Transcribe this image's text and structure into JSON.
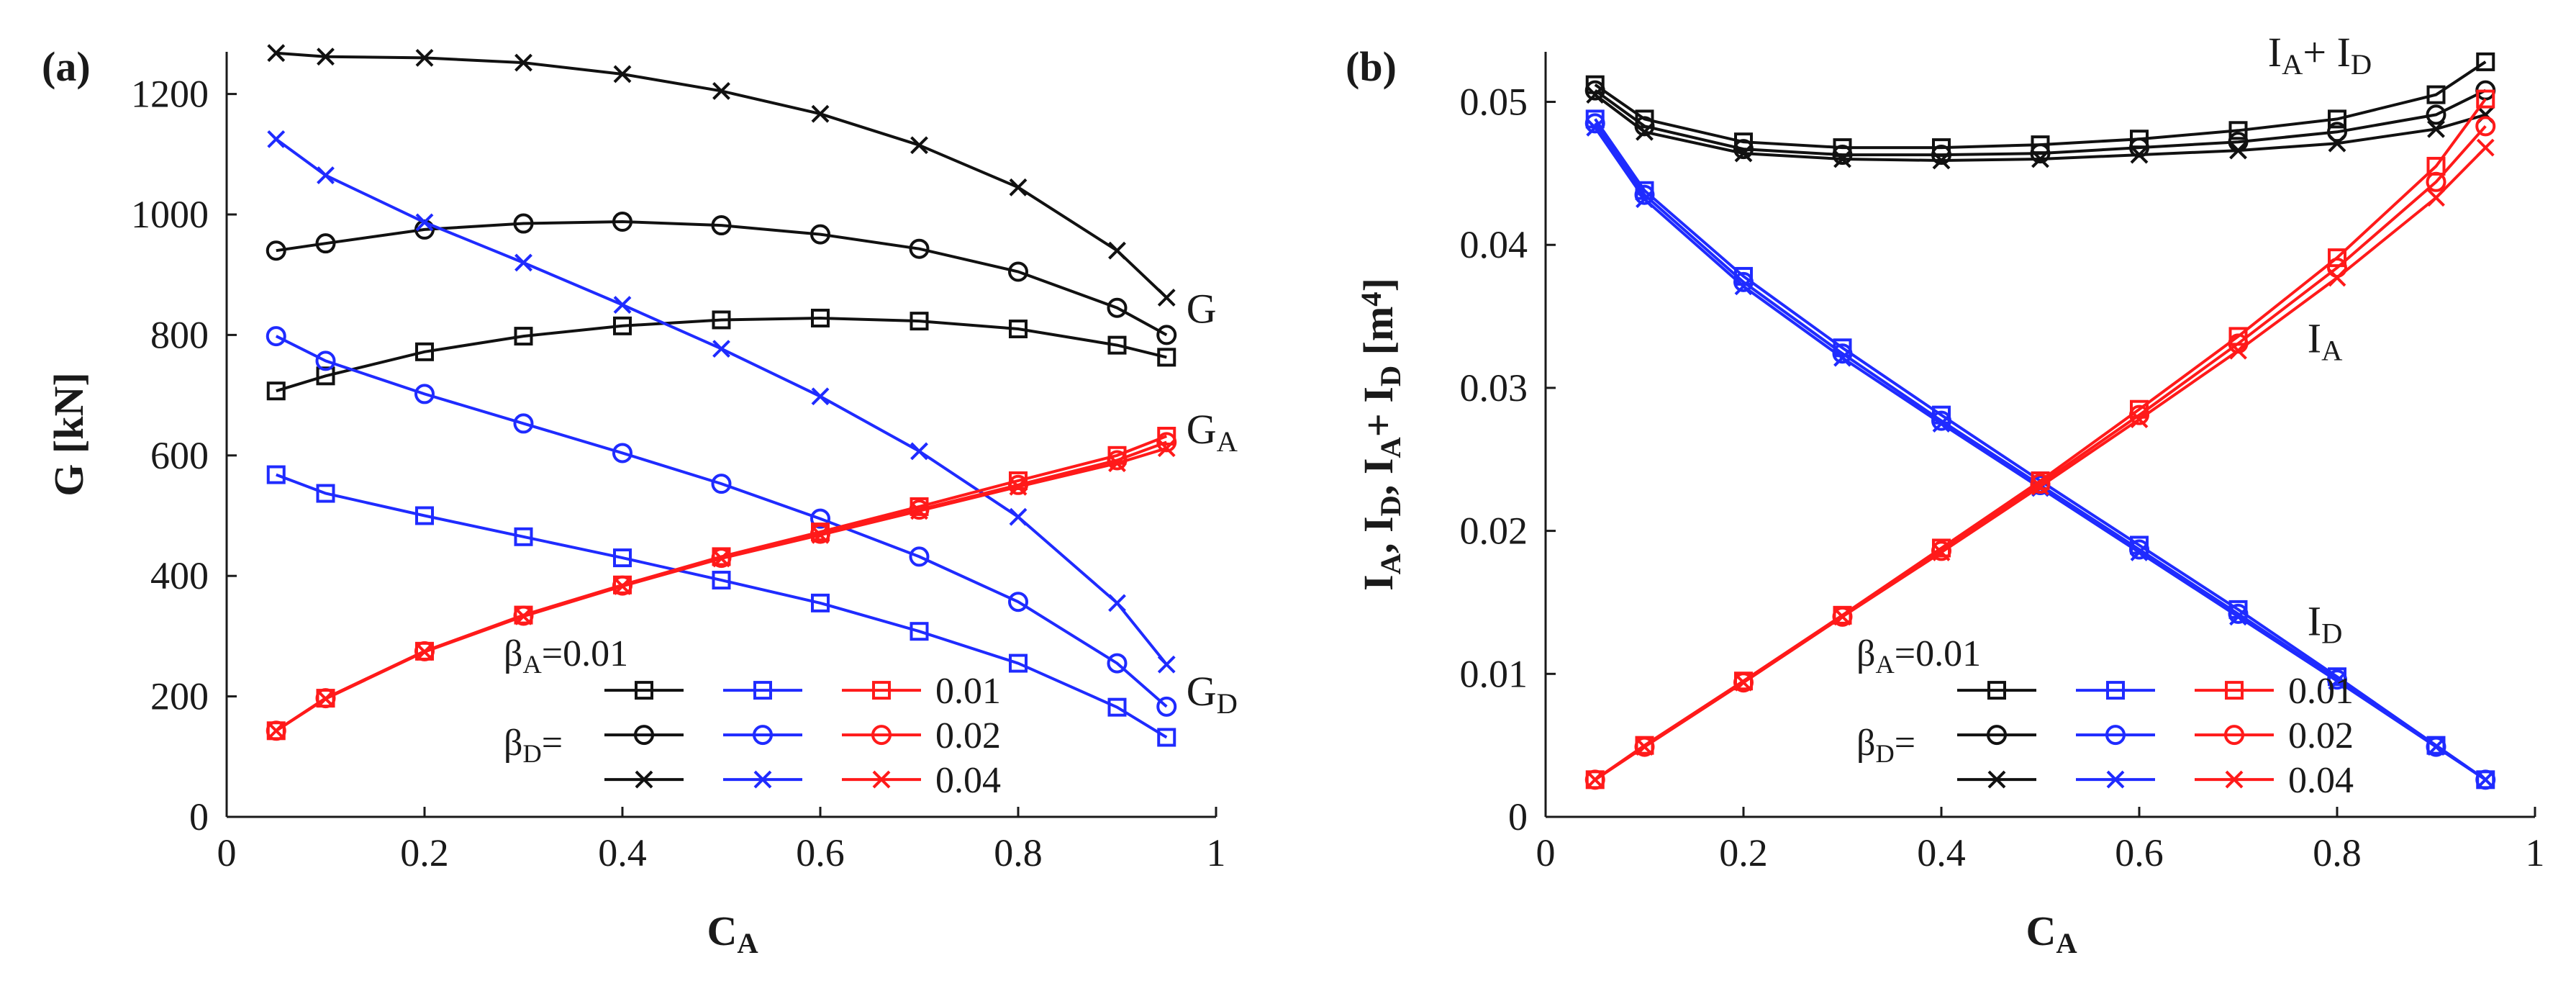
{
  "colors": {
    "black": "#111111",
    "blue": "#1f2bff",
    "red": "#ff1a1a",
    "axis": "#1a1a1a"
  },
  "chart_data": [
    {
      "type": "line",
      "panel": "(a)",
      "xlabel": "C",
      "xlabel_sub": "A",
      "ylabel": "G [kN]",
      "xlim": [
        0,
        1
      ],
      "ylim": [
        0,
        1270
      ],
      "xticks": [
        0,
        0.2,
        0.4,
        0.6,
        0.8,
        1
      ],
      "xtick_labels": [
        "0",
        "0.2",
        "0.4",
        "0.6",
        "0.8",
        "1"
      ],
      "yticks": [
        0,
        200,
        400,
        600,
        800,
        1000,
        1200
      ],
      "ytick_labels": [
        "0",
        "200",
        "400",
        "600",
        "800",
        "1000",
        "1200"
      ],
      "x": [
        0.05,
        0.1,
        0.2,
        0.3,
        0.4,
        0.5,
        0.6,
        0.7,
        0.8,
        0.9,
        0.95
      ],
      "series": [
        {
          "name": "G, βD=0.01",
          "color": "black",
          "marker": "square",
          "values": [
            707,
            732,
            772,
            798,
            815,
            825,
            828,
            823,
            810,
            783,
            763
          ]
        },
        {
          "name": "G, βD=0.02",
          "color": "black",
          "marker": "circle",
          "values": [
            940,
            952,
            975,
            985,
            988,
            982,
            967,
            943,
            905,
            845,
            800
          ]
        },
        {
          "name": "G, βD=0.04",
          "color": "black",
          "marker": "x",
          "values": [
            1268,
            1262,
            1260,
            1252,
            1233,
            1205,
            1167,
            1115,
            1045,
            940,
            862
          ]
        },
        {
          "name": "GD, βD=0.01",
          "color": "blue",
          "marker": "square",
          "values": [
            568,
            537,
            500,
            465,
            430,
            393,
            355,
            308,
            255,
            182,
            132
          ]
        },
        {
          "name": "GD, βD=0.02",
          "color": "blue",
          "marker": "circle",
          "values": [
            798,
            757,
            702,
            653,
            604,
            553,
            495,
            432,
            357,
            255,
            183
          ]
        },
        {
          "name": "GD, βD=0.04",
          "color": "blue",
          "marker": "x",
          "values": [
            1125,
            1065,
            987,
            920,
            850,
            777,
            698,
            607,
            498,
            355,
            253
          ]
        },
        {
          "name": "GA, βD=0.01",
          "color": "red",
          "marker": "square",
          "values": [
            143,
            197,
            275,
            335,
            385,
            432,
            473,
            515,
            558,
            600,
            632
          ]
        },
        {
          "name": "GA, βD=0.02",
          "color": "red",
          "marker": "circle",
          "values": [
            143,
            197,
            275,
            334,
            384,
            430,
            470,
            510,
            551,
            592,
            622
          ]
        },
        {
          "name": "GA, βD=0.04",
          "color": "red",
          "marker": "x",
          "values": [
            143,
            196,
            274,
            333,
            383,
            429,
            468,
            508,
            548,
            587,
            612
          ]
        }
      ],
      "annotations": [
        {
          "label": "G",
          "sub": "",
          "at_x": 0.97,
          "at_y": 820
        },
        {
          "label": "G",
          "sub": "A",
          "at_x": 0.97,
          "at_y": 620
        },
        {
          "label": "G",
          "sub": "D",
          "at_x": 0.97,
          "at_y": 185
        }
      ],
      "legend": {
        "beta_a_text": "β",
        "beta_a_sub": "A",
        "beta_a_value": "=0.01",
        "beta_d_text": "β",
        "beta_d_sub": "D",
        "beta_d_eq": "=",
        "entries": [
          "0.01",
          "0.02",
          "0.04"
        ],
        "placement": "lower-center"
      }
    },
    {
      "type": "line",
      "panel": "(b)",
      "xlabel": "C",
      "xlabel_sub": "A",
      "ylabel": "I",
      "ylabel_full": "IA, ID, IA+ ID [m4]",
      "xlim": [
        0,
        1
      ],
      "ylim": [
        0,
        0.0535
      ],
      "xticks": [
        0,
        0.2,
        0.4,
        0.6,
        0.8,
        1
      ],
      "xtick_labels": [
        "0",
        "0.2",
        "0.4",
        "0.6",
        "0.8",
        "1"
      ],
      "yticks": [
        0,
        0.01,
        0.02,
        0.03,
        0.04,
        0.05
      ],
      "ytick_labels": [
        "0",
        "0.01",
        "0.02",
        "0.03",
        "0.04",
        "0.05"
      ],
      "x": [
        0.05,
        0.1,
        0.2,
        0.3,
        0.4,
        0.5,
        0.6,
        0.7,
        0.8,
        0.9,
        0.95
      ],
      "series": [
        {
          "name": "IA+ID, βD=0.01",
          "color": "black",
          "marker": "square",
          "values": [
            0.0512,
            0.0488,
            0.0472,
            0.0468,
            0.0468,
            0.047,
            0.0474,
            0.048,
            0.0488,
            0.0505,
            0.0528
          ]
        },
        {
          "name": "IA+ID, βD=0.02",
          "color": "black",
          "marker": "circle",
          "values": [
            0.0508,
            0.0483,
            0.0467,
            0.0463,
            0.0463,
            0.0464,
            0.0468,
            0.0472,
            0.0479,
            0.0491,
            0.0508
          ]
        },
        {
          "name": "IA+ID, βD=0.04",
          "color": "black",
          "marker": "x",
          "values": [
            0.0505,
            0.0479,
            0.0464,
            0.046,
            0.0459,
            0.046,
            0.0463,
            0.0466,
            0.0471,
            0.0481,
            0.0491
          ]
        },
        {
          "name": "ID, βD=0.01",
          "color": "blue",
          "marker": "square",
          "values": [
            0.0488,
            0.0438,
            0.0378,
            0.0328,
            0.0281,
            0.0235,
            0.019,
            0.0145,
            0.0098,
            0.005,
            0.0026
          ]
        },
        {
          "name": "ID, βD=0.02",
          "color": "blue",
          "marker": "circle",
          "values": [
            0.0485,
            0.0435,
            0.0374,
            0.0324,
            0.0277,
            0.0232,
            0.0187,
            0.0142,
            0.0096,
            0.0049,
            0.0026
          ]
        },
        {
          "name": "ID, βD=0.04",
          "color": "blue",
          "marker": "x",
          "values": [
            0.0482,
            0.0432,
            0.0371,
            0.0321,
            0.0275,
            0.023,
            0.0185,
            0.014,
            0.0095,
            0.0049,
            0.0026
          ]
        },
        {
          "name": "IA, βD=0.01",
          "color": "red",
          "marker": "square",
          "values": [
            0.0026,
            0.005,
            0.0095,
            0.0141,
            0.0188,
            0.0235,
            0.0285,
            0.0336,
            0.0391,
            0.0455,
            0.0502
          ]
        },
        {
          "name": "IA, βD=0.02",
          "color": "red",
          "marker": "circle",
          "values": [
            0.0026,
            0.0049,
            0.0094,
            0.014,
            0.0186,
            0.0233,
            0.0281,
            0.0331,
            0.0384,
            0.0444,
            0.0483
          ]
        },
        {
          "name": "IA, βD=0.04",
          "color": "red",
          "marker": "x",
          "values": [
            0.0026,
            0.0049,
            0.0094,
            0.014,
            0.0185,
            0.0231,
            0.0278,
            0.0326,
            0.0377,
            0.0433,
            0.0468
          ]
        }
      ],
      "annotations": [
        {
          "label": "I",
          "sub": "A",
          "label2": "+ I",
          "sub2": "D",
          "at_x": 0.73,
          "at_y": 0.0525
        },
        {
          "label": "I",
          "sub": "A",
          "at_x": 0.77,
          "at_y": 0.0325
        },
        {
          "label": "I",
          "sub": "D",
          "at_x": 0.77,
          "at_y": 0.0127
        }
      ],
      "legend": {
        "beta_a_text": "β",
        "beta_a_sub": "A",
        "beta_a_value": "=0.01",
        "beta_d_text": "β",
        "beta_d_sub": "D",
        "beta_d_eq": "=",
        "entries": [
          "0.01",
          "0.02",
          "0.04"
        ],
        "placement": "lower-center"
      }
    }
  ]
}
